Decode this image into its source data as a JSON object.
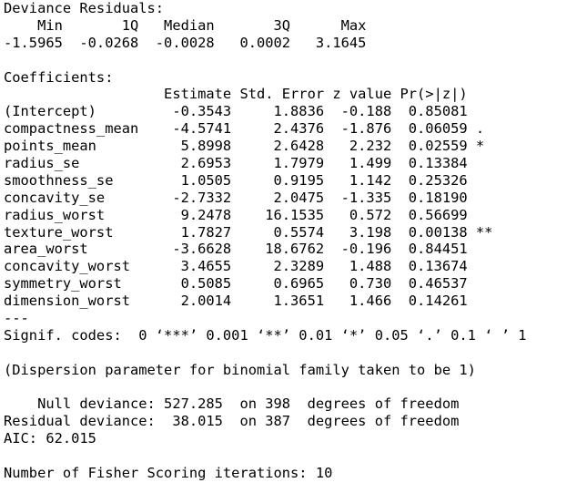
{
  "deviance_residuals": {
    "title": "Deviance Residuals:",
    "header": "    Min       1Q   Median       3Q      Max",
    "values": "-1.5965  -0.0268  -0.0028   0.0002   3.1645"
  },
  "coefficients": {
    "title": "Coefficients:",
    "header": "                   Estimate Std. Error z value Pr(>|z|)",
    "rows": [
      "(Intercept)         -0.3543     1.8836  -0.188  0.85081",
      "compactness_mean    -4.5741     2.4376  -1.876  0.06059 .",
      "points_mean          5.8998     2.6428   2.232  0.02559 *",
      "radius_se            2.6953     1.7979   1.499  0.13384",
      "smoothness_se        1.0505     0.9195   1.142  0.25326",
      "concavity_se        -2.7332     2.0475  -1.335  0.18190",
      "radius_worst         9.2478    16.1535   0.572  0.56699",
      "texture_worst        1.7827     0.5574   3.198  0.00138 **",
      "area_worst          -3.6628    18.6762  -0.196  0.84451",
      "concavity_worst      3.4655     2.3289   1.488  0.13674",
      "symmetry_worst       0.5085     0.6965   0.730  0.46537",
      "dimension_worst      2.0014     1.3651   1.466  0.14261"
    ],
    "separator": "---",
    "signif_codes": "Signif. codes:  0 ‘***’ 0.001 ‘**’ 0.01 ‘*’ 0.05 ‘.’ 0.1 ‘ ’ 1"
  },
  "dispersion": "(Dispersion parameter for binomial family taken to be 1)",
  "null_deviance": "    Null deviance: 527.285  on 398  degrees of freedom",
  "residual_deviance": "Residual deviance:  38.015  on 387  degrees of freedom",
  "aic": "AIC: 62.015",
  "fisher": "Number of Fisher Scoring iterations: 10"
}
